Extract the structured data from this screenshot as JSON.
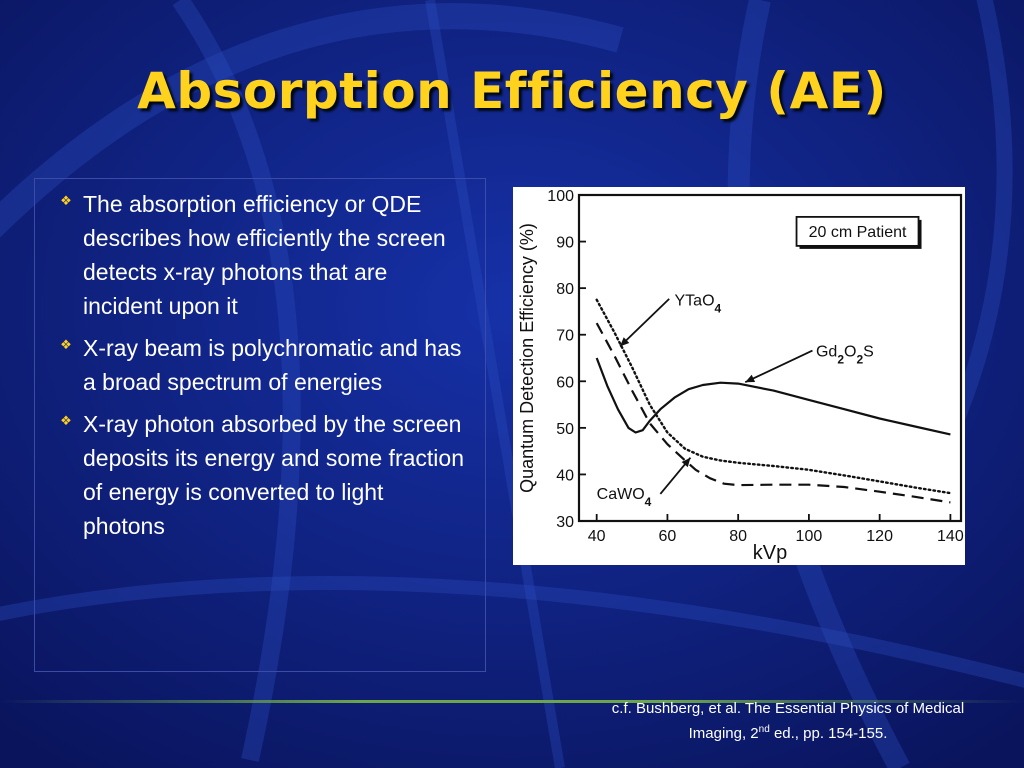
{
  "slide": {
    "title": "Absorption Efficiency (AE)",
    "bullet_icon": "diamond-quad-icon",
    "bullets": [
      "The absorption efficiency or QDE describes how efficiently the screen detects x-ray photons that are incident upon it",
      "X-ray beam is polychromatic and has a broad spectrum of energies",
      "X-ray photon absorbed by the screen deposits its energy and some fraction of energy is converted to light photons"
    ],
    "citation": {
      "line1": "c.f. Bushberg, et al. The Essential Physics of Medical",
      "line2_pre": "Imaging, 2",
      "line2_sup": "nd",
      "line2_post": " ed., pp. 154-155."
    },
    "colors": {
      "background": "#0d1a73",
      "title": "#ffd21e",
      "bullet_icon": "#ffd21e",
      "text": "#ffffff",
      "divider": "#6ba54c"
    }
  },
  "chart_data": {
    "type": "line",
    "xlabel": "kVp",
    "ylabel": "Quantum Detection Efficiency (%)",
    "xlim": [
      35,
      143
    ],
    "ylim": [
      30,
      100
    ],
    "xticks": [
      40,
      60,
      80,
      100,
      120,
      140
    ],
    "yticks": [
      30,
      40,
      50,
      60,
      70,
      80,
      90,
      100
    ],
    "grid": false,
    "legend_box": "20 cm Patient",
    "series": [
      {
        "name": "YTaO4",
        "style": "dotted",
        "label_main": "YTaO",
        "label_sub": "4",
        "x": [
          40,
          45,
          50,
          55,
          60,
          65,
          70,
          75,
          80,
          90,
          100,
          110,
          120,
          130,
          140
        ],
        "y": [
          77.5,
          70.5,
          63,
          55,
          49,
          45.5,
          43.8,
          43,
          42.5,
          41.8,
          41,
          39.8,
          38.5,
          37.2,
          36
        ]
      },
      {
        "name": "Gd2O2S",
        "style": "solid",
        "label_parts": [
          "Gd",
          "2",
          "O",
          "2",
          "S"
        ],
        "x": [
          40,
          43,
          46,
          49,
          51,
          53,
          55,
          58,
          62,
          66,
          70,
          75,
          80,
          90,
          100,
          110,
          120,
          130,
          140
        ],
        "y": [
          65,
          59,
          54,
          50,
          49,
          49.5,
          51.5,
          54,
          56.5,
          58.3,
          59.2,
          59.7,
          59.5,
          58,
          56,
          54,
          52,
          50.3,
          48.6
        ]
      },
      {
        "name": "CaWO4",
        "style": "dashed",
        "label_main": "CaWO",
        "label_sub": "4",
        "x": [
          40,
          45,
          50,
          55,
          60,
          65,
          68,
          72,
          76,
          80,
          90,
          100,
          110,
          120,
          130,
          140
        ],
        "y": [
          72.5,
          65.5,
          58,
          51,
          46.5,
          43,
          41,
          39.2,
          38,
          37.7,
          37.8,
          37.8,
          37.3,
          36.3,
          35.2,
          34
        ]
      }
    ]
  }
}
